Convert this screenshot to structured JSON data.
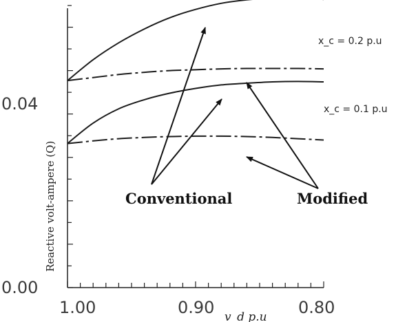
{
  "chart_data": {
    "type": "line",
    "xlabel": "v_d p.u",
    "ylabel": "Reactive volt-ampere (Q)",
    "x_tick_labels": [
      "1.00",
      "0.90",
      "0.80"
    ],
    "y_tick_labels": [
      "0.00",
      "0.04"
    ],
    "xlim": [
      1.0,
      0.8
    ],
    "ylim": [
      0.0,
      0.065
    ],
    "grid": false,
    "x": [
      1.0,
      0.98,
      0.96,
      0.94,
      0.92,
      0.9,
      0.88,
      0.86,
      0.84,
      0.82,
      0.8
    ],
    "series": [
      {
        "name": "Conventional",
        "group": "x_c = 0.2 p.u",
        "style": "solid",
        "values": [
          0.0477,
          0.0525,
          0.0564,
          0.0596,
          0.0622,
          0.0641,
          0.0655,
          0.0663,
          0.0667,
          0.0668,
          0.0664
        ]
      },
      {
        "name": "Modified",
        "group": "x_c = 0.2 p.u",
        "style": "dashdot",
        "values": [
          0.0477,
          0.0484,
          0.0491,
          0.0496,
          0.05,
          0.0502,
          0.0504,
          0.0505,
          0.0505,
          0.0505,
          0.0504
        ]
      },
      {
        "name": "Conventional",
        "group": "x_c = 0.1 p.u",
        "style": "solid",
        "values": [
          0.0332,
          0.0379,
          0.0412,
          0.0433,
          0.0448,
          0.0459,
          0.0467,
          0.0471,
          0.0474,
          0.0475,
          0.0474
        ]
      },
      {
        "name": "Modified",
        "group": "x_c = 0.1 p.u",
        "style": "dashdot",
        "values": [
          0.0332,
          0.0338,
          0.0343,
          0.0346,
          0.0348,
          0.0349,
          0.0349,
          0.0348,
          0.0346,
          0.0343,
          0.034
        ]
      }
    ],
    "series_labels": [
      "x_c = 0.2 p.u",
      "x_c = 0.1 p.u"
    ],
    "annotations": [
      "Conventional",
      "Modified"
    ]
  }
}
